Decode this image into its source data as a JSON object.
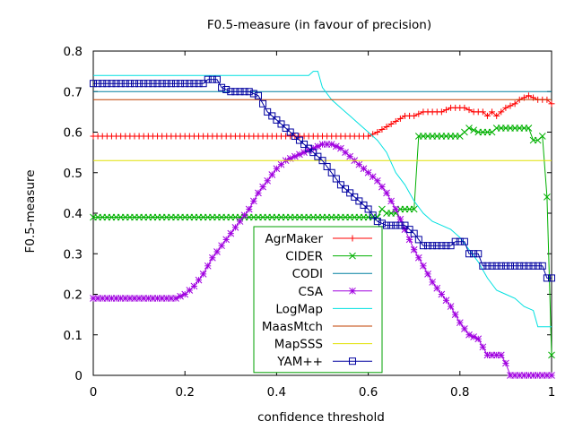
{
  "chart_data": {
    "type": "line",
    "title": "F0.5-measure (in favour of precision)",
    "xlabel": "confidence threshold",
    "ylabel": "F0.5-measure",
    "xlim": [
      0,
      1
    ],
    "ylim": [
      0,
      0.8
    ],
    "x_ticks": [
      "0",
      "0.2",
      "0.4",
      "0.6",
      "0.8",
      "1"
    ],
    "y_ticks": [
      "0",
      "0.1",
      "0.2",
      "0.3",
      "0.4",
      "0.5",
      "0.6",
      "0.7",
      "0.8"
    ],
    "grid": false,
    "legend_position": "bottom-center",
    "series": [
      {
        "name": "AgrMaker",
        "color": "#ff0000",
        "marker": "plus",
        "points": [
          [
            0,
            0.59
          ],
          [
            0.6,
            0.59
          ],
          [
            0.62,
            0.6
          ],
          [
            0.65,
            0.62
          ],
          [
            0.68,
            0.64
          ],
          [
            0.7,
            0.64
          ],
          [
            0.72,
            0.65
          ],
          [
            0.76,
            0.65
          ],
          [
            0.78,
            0.66
          ],
          [
            0.81,
            0.66
          ],
          [
            0.83,
            0.65
          ],
          [
            0.85,
            0.65
          ],
          [
            0.86,
            0.64
          ],
          [
            0.87,
            0.65
          ],
          [
            0.88,
            0.64
          ],
          [
            0.89,
            0.65
          ],
          [
            0.9,
            0.66
          ],
          [
            0.92,
            0.67
          ],
          [
            0.93,
            0.68
          ],
          [
            0.95,
            0.69
          ],
          [
            0.97,
            0.68
          ],
          [
            0.99,
            0.68
          ],
          [
            1,
            0.67
          ]
        ]
      },
      {
        "name": "CIDER",
        "color": "#00b000",
        "marker": "cross",
        "points": [
          [
            0,
            0.39
          ],
          [
            0.62,
            0.39
          ],
          [
            0.63,
            0.41
          ],
          [
            0.64,
            0.4
          ],
          [
            0.66,
            0.4
          ],
          [
            0.67,
            0.41
          ],
          [
            0.7,
            0.41
          ],
          [
            0.71,
            0.59
          ],
          [
            0.8,
            0.59
          ],
          [
            0.82,
            0.61
          ],
          [
            0.84,
            0.6
          ],
          [
            0.87,
            0.6
          ],
          [
            0.88,
            0.61
          ],
          [
            0.95,
            0.61
          ],
          [
            0.96,
            0.58
          ],
          [
            0.97,
            0.58
          ],
          [
            0.98,
            0.59
          ],
          [
            0.99,
            0.44
          ],
          [
            1,
            0.05
          ]
        ]
      },
      {
        "name": "CODI",
        "color": "#0080a0",
        "marker": "none",
        "points": [
          [
            0,
            0.7
          ],
          [
            1,
            0.7
          ]
        ]
      },
      {
        "name": "CSA",
        "color": "#a000e0",
        "marker": "star",
        "points": [
          [
            0,
            0.19
          ],
          [
            0.18,
            0.19
          ],
          [
            0.2,
            0.2
          ],
          [
            0.22,
            0.22
          ],
          [
            0.24,
            0.25
          ],
          [
            0.26,
            0.29
          ],
          [
            0.28,
            0.32
          ],
          [
            0.3,
            0.35
          ],
          [
            0.32,
            0.38
          ],
          [
            0.34,
            0.41
          ],
          [
            0.36,
            0.45
          ],
          [
            0.38,
            0.48
          ],
          [
            0.4,
            0.51
          ],
          [
            0.42,
            0.53
          ],
          [
            0.44,
            0.54
          ],
          [
            0.46,
            0.55
          ],
          [
            0.48,
            0.56
          ],
          [
            0.5,
            0.57
          ],
          [
            0.52,
            0.57
          ],
          [
            0.54,
            0.56
          ],
          [
            0.56,
            0.54
          ],
          [
            0.58,
            0.52
          ],
          [
            0.6,
            0.5
          ],
          [
            0.62,
            0.48
          ],
          [
            0.64,
            0.45
          ],
          [
            0.66,
            0.41
          ],
          [
            0.68,
            0.36
          ],
          [
            0.7,
            0.31
          ],
          [
            0.72,
            0.27
          ],
          [
            0.74,
            0.23
          ],
          [
            0.76,
            0.2
          ],
          [
            0.78,
            0.17
          ],
          [
            0.8,
            0.13
          ],
          [
            0.82,
            0.1
          ],
          [
            0.84,
            0.09
          ],
          [
            0.86,
            0.05
          ],
          [
            0.89,
            0.05
          ],
          [
            0.9,
            0.03
          ],
          [
            0.91,
            0
          ],
          [
            1,
            0
          ]
        ]
      },
      {
        "name": "LogMap",
        "color": "#00e0e0",
        "marker": "none",
        "points": [
          [
            0,
            0.74
          ],
          [
            0.47,
            0.74
          ],
          [
            0.48,
            0.75
          ],
          [
            0.49,
            0.75
          ],
          [
            0.5,
            0.71
          ],
          [
            0.52,
            0.68
          ],
          [
            0.54,
            0.66
          ],
          [
            0.56,
            0.64
          ],
          [
            0.58,
            0.62
          ],
          [
            0.6,
            0.6
          ],
          [
            0.62,
            0.58
          ],
          [
            0.64,
            0.55
          ],
          [
            0.66,
            0.5
          ],
          [
            0.68,
            0.47
          ],
          [
            0.7,
            0.43
          ],
          [
            0.72,
            0.4
          ],
          [
            0.74,
            0.38
          ],
          [
            0.76,
            0.37
          ],
          [
            0.78,
            0.36
          ],
          [
            0.8,
            0.34
          ],
          [
            0.82,
            0.31
          ],
          [
            0.84,
            0.28
          ],
          [
            0.86,
            0.24
          ],
          [
            0.88,
            0.21
          ],
          [
            0.9,
            0.2
          ],
          [
            0.92,
            0.19
          ],
          [
            0.94,
            0.17
          ],
          [
            0.96,
            0.16
          ],
          [
            0.97,
            0.12
          ],
          [
            1,
            0.12
          ]
        ]
      },
      {
        "name": "MaasMtch",
        "color": "#c04000",
        "marker": "none",
        "points": [
          [
            0,
            0.68
          ],
          [
            1,
            0.68
          ]
        ]
      },
      {
        "name": "MapSSS",
        "color": "#e0e000",
        "marker": "none",
        "points": [
          [
            0,
            0.53
          ],
          [
            1,
            0.53
          ]
        ]
      },
      {
        "name": "YAM++",
        "color": "#0000a0",
        "marker": "square",
        "points": [
          [
            0,
            0.72
          ],
          [
            0.24,
            0.72
          ],
          [
            0.25,
            0.73
          ],
          [
            0.27,
            0.73
          ],
          [
            0.28,
            0.71
          ],
          [
            0.3,
            0.7
          ],
          [
            0.34,
            0.7
          ],
          [
            0.36,
            0.69
          ],
          [
            0.37,
            0.67
          ],
          [
            0.38,
            0.65
          ],
          [
            0.4,
            0.63
          ],
          [
            0.42,
            0.61
          ],
          [
            0.44,
            0.59
          ],
          [
            0.46,
            0.57
          ],
          [
            0.48,
            0.55
          ],
          [
            0.5,
            0.53
          ],
          [
            0.52,
            0.5
          ],
          [
            0.54,
            0.47
          ],
          [
            0.56,
            0.45
          ],
          [
            0.58,
            0.43
          ],
          [
            0.6,
            0.41
          ],
          [
            0.62,
            0.38
          ],
          [
            0.64,
            0.37
          ],
          [
            0.68,
            0.37
          ],
          [
            0.7,
            0.35
          ],
          [
            0.72,
            0.32
          ],
          [
            0.78,
            0.32
          ],
          [
            0.79,
            0.33
          ],
          [
            0.81,
            0.33
          ],
          [
            0.82,
            0.3
          ],
          [
            0.84,
            0.3
          ],
          [
            0.85,
            0.27
          ],
          [
            0.98,
            0.27
          ],
          [
            0.99,
            0.24
          ],
          [
            1,
            0.24
          ]
        ]
      }
    ]
  }
}
